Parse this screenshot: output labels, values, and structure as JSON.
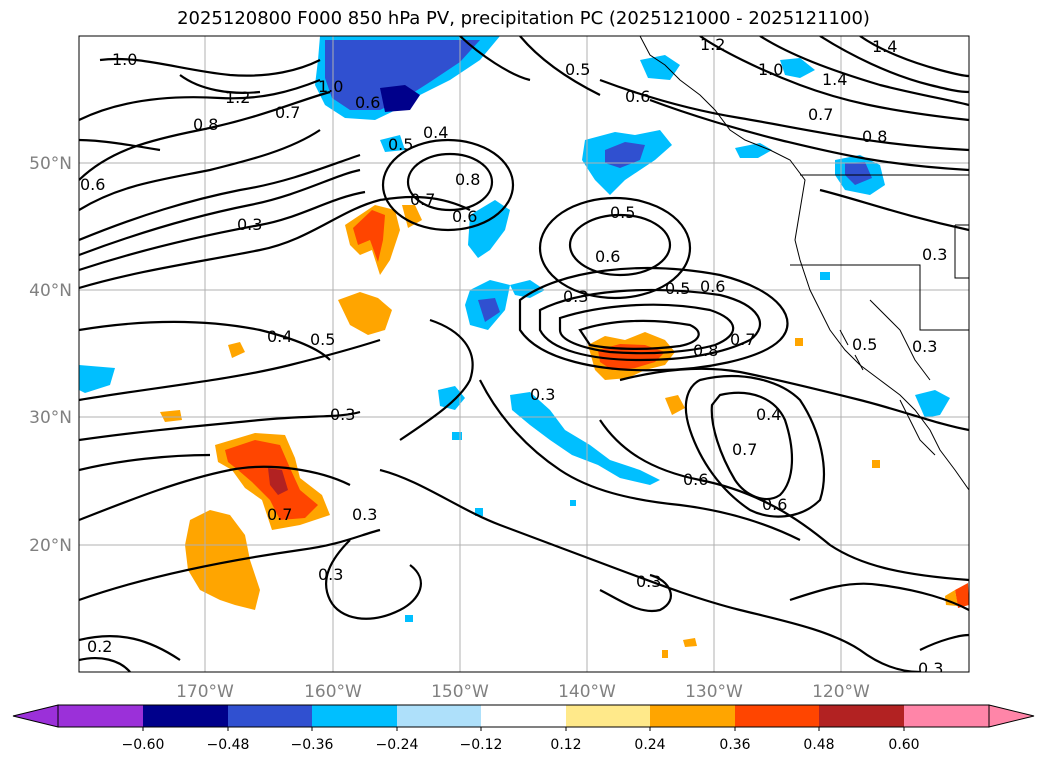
{
  "title": "2025120800 F000 850 hPa PV, precipitation PC (2025121000 - 2025121100)",
  "map": {
    "lat_labels": [
      "50°N",
      "40°N",
      "30°N",
      "20°N"
    ],
    "lon_labels": [
      "170°W",
      "160°W",
      "150°W",
      "140°W",
      "130°W",
      "120°W"
    ],
    "gridlines": true,
    "contour_variable": "850 hPa PV",
    "fill_variable": "precipitation PC",
    "contour_labels": [
      "1.0",
      "1.2",
      "0.8",
      "0.7",
      "1.0",
      "0.6",
      "0.5",
      "0.4",
      "0.6",
      "0.3",
      "0.8",
      "0.7",
      "0.6",
      "1.2",
      "1.4",
      "1.0",
      "1.4",
      "0.5",
      "0.6",
      "0.7",
      "0.8",
      "0.5",
      "0.6",
      "0.3",
      "0.5",
      "0.6",
      "0.3",
      "0.4",
      "0.5",
      "0.8",
      "0.7",
      "0.5",
      "0.3",
      "0.3",
      "0.4",
      "0.3",
      "0.7",
      "0.6",
      "0.7",
      "0.6",
      "0.3",
      "0.3",
      "0.3",
      "0.2",
      "0.3"
    ]
  },
  "colorbar": {
    "ticks": [
      "−0.60",
      "−0.48",
      "−0.36",
      "−0.24",
      "−0.12",
      "0.12",
      "0.24",
      "0.36",
      "0.48",
      "0.60"
    ],
    "colors": [
      "#9b30d9",
      "#00008b",
      "#3050d0",
      "#00bfff",
      "#aee0fa",
      "#ffffff",
      "#ffe98a",
      "#ffa500",
      "#ff4500",
      "#b22222",
      "#ff85a8"
    ],
    "extend": "both"
  }
}
